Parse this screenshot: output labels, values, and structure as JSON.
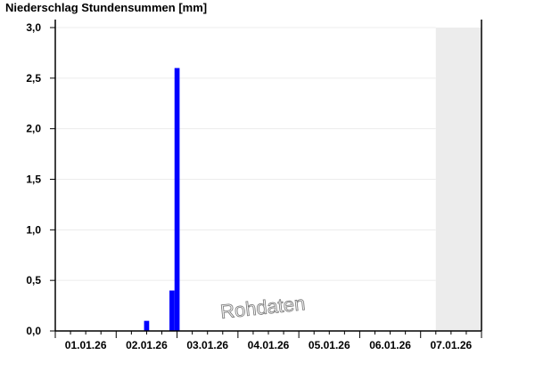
{
  "chart_data": {
    "type": "bar",
    "title": "Niederschlag Stundensummen [mm]",
    "watermark": "Rohdaten",
    "x_tick_labels": [
      "01.01.26",
      "02.01.26",
      "03.01.26",
      "04.01.26",
      "05.01.26",
      "06.01.26",
      "07.01.26"
    ],
    "y_tick_labels": [
      "0,0",
      "0,5",
      "1,0",
      "1,5",
      "2,0",
      "2,5",
      "3,0"
    ],
    "ylim": [
      0,
      3.0
    ],
    "grid": "horizontal",
    "bar_color": "#0000ff",
    "no_data_shading_color": "#ececec",
    "no_data_from": "07.01.26 06:00",
    "series": [
      {
        "points": [
          {
            "x": "02.01.26 11:00",
            "y": 0.1
          },
          {
            "x": "02.01.26 21:00",
            "y": 0.4
          },
          {
            "x": "02.01.26 23:00",
            "y": 2.6
          }
        ]
      }
    ]
  }
}
